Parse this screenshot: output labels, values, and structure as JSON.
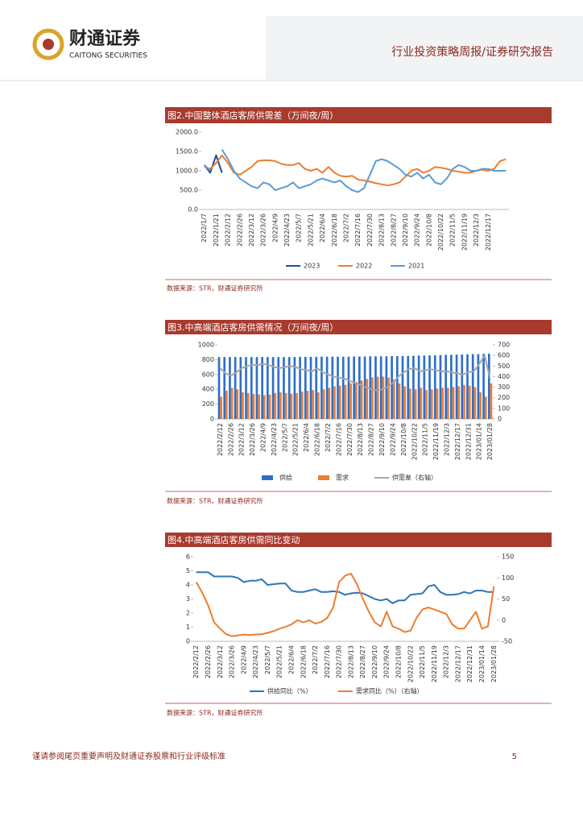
{
  "header": {
    "brand_cn": "财通证券",
    "brand_en": "CAITONG SECURITIES",
    "report_type": "行业投资策略周报/证券研究报告"
  },
  "footer": {
    "disclaimer": "谨请参阅尾页重要声明及财通证券股票和行业评级标准",
    "page": "5"
  },
  "chart_data": [
    {
      "type": "line",
      "title": "图2.中国整体酒店客房供需差（万间夜/周）",
      "source": "数据来源：STR，财通证券研究所",
      "categories": [
        "2022/1/7",
        null,
        "2022/1/21",
        null,
        "2022/2/12",
        null,
        "2022/2/26",
        null,
        "2022/3/12",
        null,
        "2022/3/26",
        null,
        "2022/4/9",
        null,
        "2022/4/23",
        null,
        "2022/5/7",
        null,
        "2022/5/21",
        null,
        "2022/6/4",
        null,
        "2022/6/18",
        null,
        "2022/7/2",
        null,
        "2022/7/16",
        null,
        "2022/7/30",
        null,
        "2022/8/13",
        null,
        "2022/8/27",
        null,
        "2022/9/10",
        null,
        "2022/9/24",
        null,
        "2022/10/8",
        null,
        "2022/10/22",
        null,
        "2022/11/5",
        null,
        "2022/11/19",
        null,
        "2022/12/3",
        null,
        "2022/12/17",
        null,
        null,
        null
      ],
      "ylim": [
        0,
        2000
      ],
      "yticks": [
        {
          "value": 0,
          "label": "0.0"
        },
        {
          "value": 500,
          "label": "500.0"
        },
        {
          "value": 1000,
          "label": "1000.0"
        },
        {
          "value": 1500,
          "label": "1500.0"
        },
        {
          "value": 2000,
          "label": "2000.0"
        }
      ],
      "series": [
        {
          "name": "2023",
          "color": "#1f4e9c",
          "values": [
            1150,
            950,
            1400,
            950,
            null,
            null,
            null,
            null,
            null,
            null,
            null,
            null,
            null,
            null,
            null,
            null,
            null,
            null,
            null,
            null,
            null,
            null,
            null,
            null,
            null,
            null,
            null,
            null,
            null,
            null,
            null,
            null,
            null,
            null,
            null,
            null,
            null,
            null,
            null,
            null,
            null,
            null,
            null,
            null,
            null,
            null,
            null,
            null,
            null,
            null,
            null,
            null
          ]
        },
        {
          "name": "2022",
          "color": "#ed7d31",
          "values": [
            1100,
            1050,
            1200,
            1400,
            1200,
            950,
            900,
            1000,
            1100,
            1250,
            1270,
            1270,
            1250,
            1180,
            1150,
            1150,
            1200,
            1050,
            1000,
            1050,
            950,
            1100,
            950,
            870,
            850,
            870,
            770,
            750,
            720,
            680,
            650,
            620,
            650,
            700,
            850,
            1000,
            1050,
            950,
            1000,
            1100,
            1080,
            1050,
            1000,
            980,
            950,
            950,
            1000,
            1030,
            1000,
            1050,
            1250,
            1300
          ]
        },
        {
          "name": "2021",
          "color": "#5b9bd5",
          "values": [
            1150,
            1000,
            null,
            1550,
            1300,
            1000,
            800,
            700,
            600,
            550,
            700,
            650,
            500,
            550,
            600,
            700,
            550,
            600,
            650,
            750,
            800,
            750,
            700,
            750,
            600,
            500,
            450,
            550,
            900,
            1250,
            1300,
            1250,
            1150,
            1050,
            900,
            850,
            950,
            800,
            900,
            700,
            650,
            800,
            1050,
            1150,
            1100,
            1000,
            1000,
            1050,
            1050,
            1000,
            1000,
            1000
          ]
        }
      ]
    },
    {
      "type": "bar",
      "title": "图3.中高端酒店客房供需情况（万间夜/周）",
      "source": "数据来源：STR，财通证券研究所",
      "categories": [
        "2022/2/12",
        null,
        "2022/2/26",
        null,
        "2022/3/12",
        null,
        "2022/3/26",
        null,
        "2022/4/9",
        null,
        "2022/4/23",
        null,
        "2022/5/7",
        null,
        "2022/5/21",
        null,
        "2022/6/4",
        null,
        "2022/6/18",
        null,
        "2022/7/2",
        null,
        "2022/7/16",
        null,
        "2022/7/30",
        null,
        "2022/8/13",
        null,
        "2022/8/27",
        null,
        "2022/9/10",
        null,
        "2022/9/24",
        null,
        "2022/10/8",
        null,
        "2022/10/22",
        null,
        "2022/11/5",
        null,
        "2022/11/19",
        null,
        "2022/12/3",
        null,
        "2022/12/17",
        null,
        "2022/12/31",
        null,
        "2023/01/14",
        null,
        "2023/01/28"
      ],
      "ylim": [
        0,
        1000
      ],
      "yticks": [
        0,
        200,
        400,
        600,
        800,
        1000
      ],
      "y2lim": [
        0,
        700
      ],
      "y2ticks": [
        0,
        100,
        200,
        300,
        400,
        500,
        600,
        700
      ],
      "series": [
        {
          "name": "供给",
          "color": "#2e6fc9",
          "values": [
            835,
            835,
            835,
            835,
            835,
            835,
            835,
            835,
            835,
            835,
            835,
            835,
            835,
            835,
            835,
            838,
            838,
            838,
            838,
            840,
            840,
            840,
            840,
            840,
            840,
            842,
            842,
            842,
            845,
            845,
            845,
            845,
            848,
            848,
            850,
            850,
            852,
            855,
            855,
            858,
            860,
            862,
            865,
            865,
            868,
            870,
            872,
            875,
            875,
            878,
            880
          ]
        },
        {
          "name": "需求",
          "color": "#ed7d31",
          "values": [
            300,
            380,
            420,
            400,
            360,
            350,
            340,
            330,
            320,
            330,
            350,
            360,
            350,
            340,
            350,
            370,
            380,
            390,
            360,
            400,
            420,
            440,
            450,
            460,
            480,
            500,
            520,
            540,
            560,
            570,
            570,
            560,
            530,
            480,
            440,
            410,
            400,
            420,
            390,
            400,
            410,
            420,
            420,
            430,
            440,
            460,
            450,
            430,
            360,
            300,
            480
          ]
        },
        {
          "name": "供需差（右轴）",
          "color": "#a5a5a5",
          "type": "line",
          "axis": "y2",
          "values": [
            480,
            430,
            410,
            440,
            480,
            500,
            510,
            510,
            520,
            510,
            490,
            480,
            490,
            500,
            490,
            470,
            460,
            450,
            480,
            440,
            420,
            400,
            390,
            380,
            360,
            340,
            320,
            300,
            280,
            270,
            280,
            300,
            340,
            400,
            440,
            470,
            480,
            450,
            460,
            470,
            460,
            450,
            450,
            440,
            430,
            420,
            440,
            450,
            520,
            600,
            380
          ]
        }
      ]
    },
    {
      "type": "line",
      "title": "图4.中高端酒店客房供需同比变动",
      "source": "数据来源：STR，财通证券研究所",
      "categories": [
        "2022/2/12",
        null,
        "2022/2/26",
        null,
        "2022/3/12",
        null,
        "2022/3/26",
        null,
        "2022/4/9",
        null,
        "2022/4/23",
        null,
        "2022/5/7",
        null,
        "2022/5/21",
        null,
        "2022/6/4",
        null,
        "2022/6/18",
        null,
        "2022/7/2",
        null,
        "2022/7/16",
        null,
        "2022/7/30",
        null,
        "2022/8/13",
        null,
        "2022/8/27",
        null,
        "2022/9/10",
        null,
        "2022/9/24",
        null,
        "2022/10/8",
        null,
        "2022/10/22",
        null,
        "2022/11/5",
        null,
        "2022/11/19",
        null,
        "2022/12/3",
        null,
        "2022/12/17",
        null,
        "2022/12/31",
        null,
        "2023/01/14",
        null,
        "2023/01/28"
      ],
      "ylim": [
        0,
        6
      ],
      "yticks": [
        0,
        1,
        2,
        3,
        4,
        5,
        6
      ],
      "y2lim": [
        -50,
        150
      ],
      "y2ticks": [
        -50,
        0,
        50,
        100,
        150
      ],
      "series": [
        {
          "name": "供给同比（%）",
          "color": "#2e75b6",
          "values": [
            4.9,
            4.9,
            4.9,
            4.6,
            4.6,
            4.6,
            4.6,
            4.5,
            4.2,
            4.3,
            4.3,
            4.4,
            4.0,
            4.05,
            4.1,
            4.1,
            3.6,
            3.5,
            3.5,
            3.6,
            3.7,
            3.5,
            3.5,
            3.55,
            3.5,
            3.3,
            3.4,
            3.45,
            3.4,
            3.2,
            3.0,
            2.9,
            3.0,
            2.7,
            2.9,
            2.9,
            3.3,
            3.35,
            3.4,
            3.9,
            4.0,
            3.5,
            3.3,
            3.3,
            3.35,
            3.5,
            3.4,
            3.6,
            3.6,
            3.5,
            3.5
          ]
        },
        {
          "name": "需求同比（%）（右轴）",
          "color": "#ed7d31",
          "axis": "y2",
          "values": [
            90,
            65,
            35,
            -5,
            -20,
            -33,
            -38,
            -36,
            -34,
            -35,
            -34,
            -33,
            -30,
            -26,
            -20,
            -16,
            -10,
            0,
            -5,
            0,
            -8,
            -4,
            5,
            30,
            90,
            105,
            110,
            85,
            50,
            20,
            -5,
            -15,
            20,
            -15,
            -20,
            -28,
            -25,
            5,
            25,
            30,
            25,
            20,
            15,
            -10,
            -20,
            -20,
            0,
            20,
            -20,
            -15,
            80
          ]
        }
      ]
    }
  ]
}
